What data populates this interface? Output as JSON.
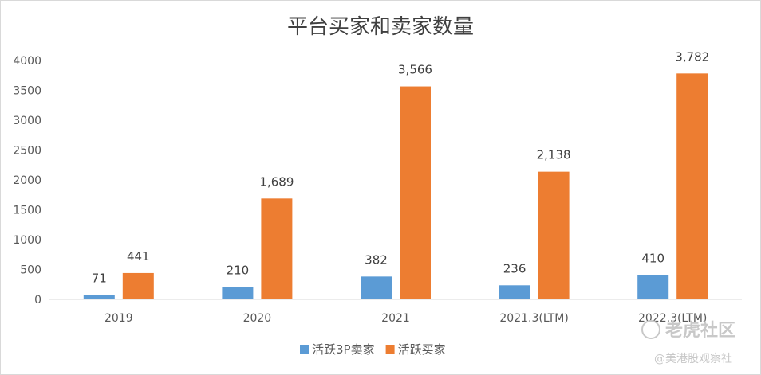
{
  "chart_data": {
    "type": "bar",
    "title": "平台买家和卖家数量",
    "categories": [
      "2019",
      "2020",
      "2021",
      "2021.3(LTM)",
      "2022.3(LTM)"
    ],
    "series": [
      {
        "name": "活跃3P卖家",
        "values": [
          71,
          210,
          382,
          236,
          410
        ],
        "labels": [
          "71",
          "210",
          "382",
          "236",
          "410"
        ],
        "color": "#5b9bd5"
      },
      {
        "name": "活跃买家",
        "values": [
          441,
          1689,
          3566,
          2138,
          3782
        ],
        "labels": [
          "441",
          "1,689",
          "3,566",
          "2,138",
          "3,782"
        ],
        "color": "#ed7d31"
      }
    ],
    "ylim": [
      0,
      4000
    ],
    "yticks": [
      "0",
      "500",
      "1000",
      "1500",
      "2000",
      "2500",
      "3000",
      "3500",
      "4000"
    ],
    "grid": false,
    "legend": "bottom"
  },
  "watermark": {
    "logo_text": "老虎社区",
    "handle": "@美港股观察社"
  }
}
